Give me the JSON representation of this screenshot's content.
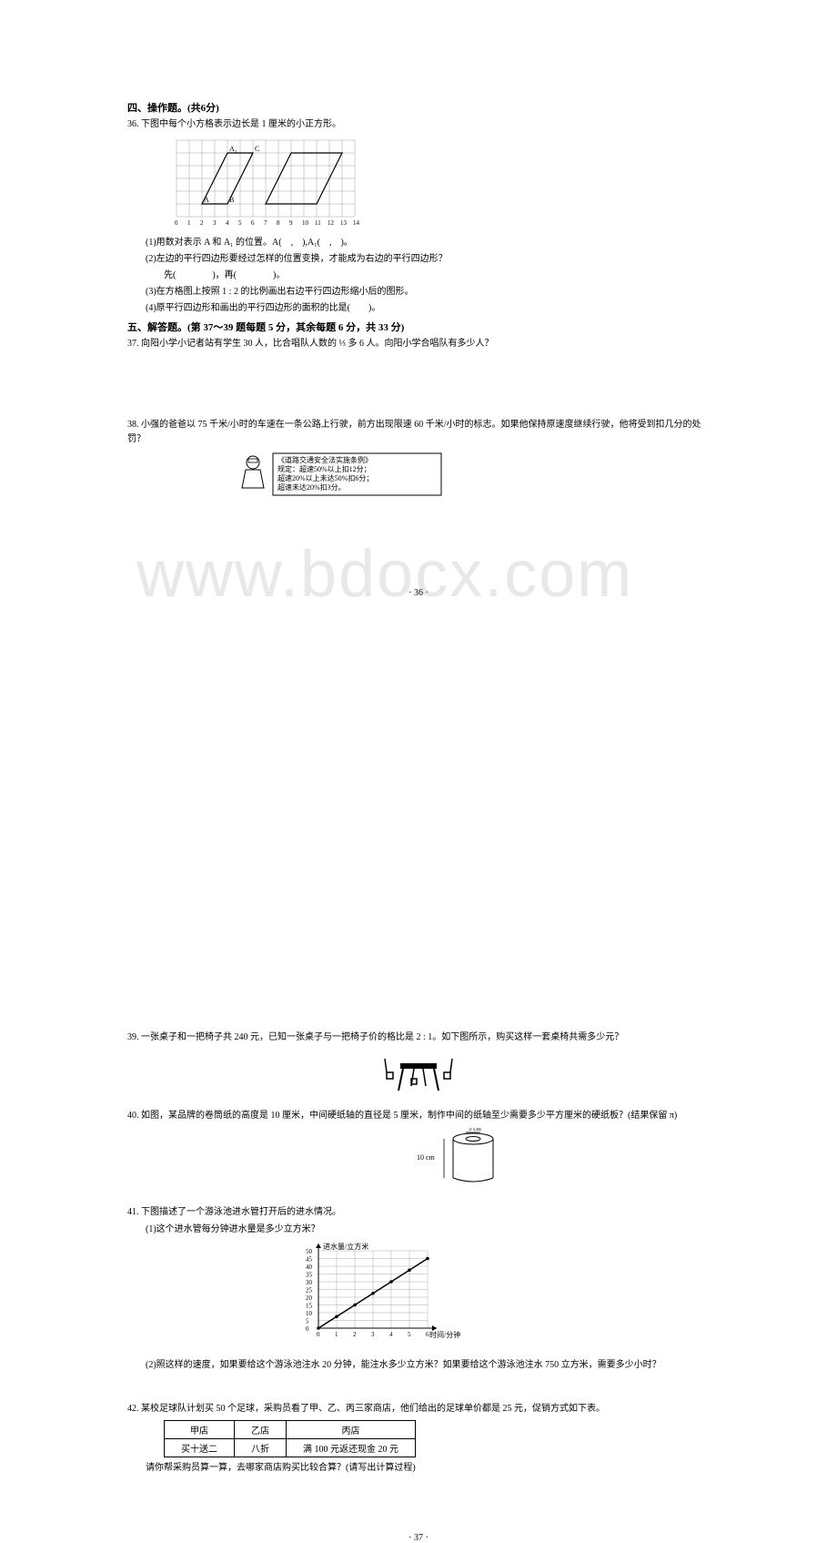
{
  "section4": {
    "title": "四、操作题。(共6分)",
    "q36": {
      "stem": "36. 下图中每个小方格表示边长是 1 厘米的小正方形。",
      "grid": {
        "cols": 14,
        "rows": 6,
        "cell_size": 14,
        "x_labels": [
          "0",
          "1",
          "2",
          "3",
          "4",
          "5",
          "6",
          "7",
          "8",
          "9",
          "10",
          "11",
          "12",
          "13",
          "14"
        ],
        "left_parallelogram": {
          "points": [
            [
              2,
              1
            ],
            [
              4,
              1
            ],
            [
              6,
              5
            ],
            [
              4,
              5
            ]
          ],
          "labels": [
            "A",
            "B",
            "C",
            "A₁"
          ]
        },
        "right_parallelogram": {
          "points": [
            [
              9,
              5
            ],
            [
              13,
              5
            ],
            [
              11,
              1
            ],
            [
              7,
              1
            ]
          ]
        },
        "line_color": "#000000",
        "grid_color": "#888888"
      },
      "sub1": "(1)用数对表示 A 和 A₁ 的位置。A(　,　),A₁(　,　)。",
      "sub2": "(2)左边的平行四边形要经过怎样的位置变换，才能成为右边的平行四边形？",
      "sub2_line2": "先(　　　　)，再(　　　　)。",
      "sub3": "(3)在方格图上按照 1 : 2 的比例画出右边平行四边形缩小后的图形。",
      "sub4": "(4)原平行四边形和画出的平行四边形的面积的比是(　　)。"
    }
  },
  "section5": {
    "title": "五、解答题。(第 37～39 题每题 5 分，其余每题 6 分，共 33 分)",
    "q37": "37. 向阳小学小记者站有学生 30 人，比合唱队人数的 ⅓ 多 6 人。向阳小学合唱队有多少人？",
    "q38": {
      "stem": "38. 小强的爸爸以 75 千米/小时的车速在一条公路上行驶，前方出现限速 60 千米/小时的标志。如果他保持原速度继续行驶，他将受到扣几分的处罚？",
      "box_title": "《道路交通安全法实施条例》",
      "box_line1": "规定：超速50%以上扣12分；",
      "box_line2": "超速20%以上未达50%扣6分；",
      "box_line3": "超速未达20%扣3分。"
    }
  },
  "page_num_1": "· 36 ·",
  "q39": {
    "stem": "39. 一张桌子和一把椅子共 240 元，已知一张桌子与一把椅子价的格比是 2 : 1。如下图所示，购买这样一套桌椅共需多少元？"
  },
  "q40": {
    "stem": "40. 如图，某品牌的卷筒纸的高度是 10 厘米，中间硬纸轴的直径是 5 厘米，制作中间的纸轴至少需要多少平方厘米的硬纸板？(结果保留 π)",
    "cylinder": {
      "height_label": "10 cm",
      "diameter_label": "5 cm"
    }
  },
  "q41": {
    "stem": "41. 下图描述了一个游泳池进水管打开后的进水情况。",
    "sub1": "(1)这个进水管每分钟进水量是多少立方米？",
    "chart": {
      "type": "line",
      "x_label": "时间/分钟",
      "y_label": "进水量/立方米",
      "x_ticks": [
        0,
        1,
        2,
        3,
        4,
        5,
        6
      ],
      "y_ticks": [
        0,
        5,
        10,
        15,
        20,
        25,
        30,
        35,
        40,
        45,
        50
      ],
      "points": [
        [
          0,
          0
        ],
        [
          1,
          7.5
        ],
        [
          2,
          15
        ],
        [
          3,
          22.5
        ],
        [
          4,
          30
        ],
        [
          5,
          37.5
        ],
        [
          6,
          45
        ]
      ],
      "line_color": "#000000",
      "grid_color": "#999999",
      "bg_color": "#ffffff"
    },
    "sub2": "(2)照这样的速度，如果要给这个游泳池注水 20 分钟，能注水多少立方米？如果要给这个游泳池注水 750 立方米，需要多少小时？"
  },
  "q42": {
    "stem": "42. 某校足球队计划买 50 个足球，采购员看了甲、乙、丙三家商店，他们给出的足球单价都是 25 元，促销方式如下表。",
    "table": {
      "headers": [
        "甲店",
        "乙店",
        "丙店"
      ],
      "row": [
        "买十送二",
        "八折",
        "满 100 元返还现金 20 元"
      ]
    },
    "tail": "请你帮采购员算一算，去哪家商店购买比较合算？(请写出计算过程)"
  },
  "page_num_2": "· 37 ·",
  "watermark_text": "www.bdocx.com"
}
